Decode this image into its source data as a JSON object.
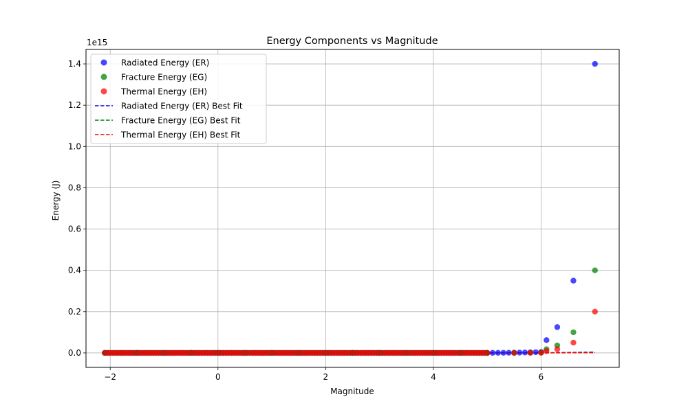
{
  "chart_data": {
    "type": "scatter",
    "title": "Energy Components vs Magnitude",
    "xlabel": "Magnitude",
    "ylabel": "Energy (J)",
    "y_offset_label": "1e15",
    "xlim": [
      -2.45,
      7.45
    ],
    "ylim": [
      -0.07,
      1.47
    ],
    "y_scale_factor": 1000000000000000.0,
    "xticks": [
      -2,
      0,
      2,
      4,
      6
    ],
    "xtick_labels": [
      "−2",
      "0",
      "2",
      "4",
      "6"
    ],
    "yticks": [
      0.0,
      0.2,
      0.4,
      0.6,
      0.8,
      1.0,
      1.2,
      1.4
    ],
    "ytick_labels": [
      "0.0",
      "0.2",
      "0.4",
      "0.6",
      "0.8",
      "1.0",
      "1.2",
      "1.4"
    ],
    "grid": true,
    "legend_position": "top-left",
    "colors": {
      "ER": "#0000ff",
      "EG": "#008000",
      "EH": "#ff0000"
    },
    "series": [
      {
        "name": "Radiated Energy (ER)",
        "key": "ER",
        "kind": "scatter",
        "x": [
          -2.1,
          -1.5,
          -1.0,
          -0.5,
          0.0,
          0.5,
          1.0,
          1.5,
          2.0,
          2.5,
          3.0,
          3.5,
          4.0,
          4.5,
          5.0,
          5.1,
          5.2,
          5.3,
          5.4,
          5.5,
          5.6,
          5.7,
          5.8,
          5.9,
          6.0,
          6.1,
          6.3,
          6.6,
          7.0
        ],
        "y": [
          0,
          0,
          0,
          0,
          0,
          0,
          0,
          0,
          0,
          0,
          0,
          0,
          0,
          0,
          0.0002,
          0.0003,
          0.0004,
          0.0006,
          0.0008,
          0.0011,
          0.0015,
          0.002,
          0.0028,
          0.0035,
          0.0045,
          0.062,
          0.125,
          0.35,
          1.4
        ]
      },
      {
        "name": "Fracture Energy (EG)",
        "key": "EG",
        "kind": "scatter",
        "x": [
          -2.1,
          -1.5,
          -1.0,
          -0.5,
          0.0,
          0.5,
          1.0,
          1.5,
          2.0,
          2.5,
          3.0,
          3.5,
          4.0,
          4.5,
          5.0,
          5.5,
          5.8,
          6.0,
          6.1,
          6.3,
          6.6,
          7.0
        ],
        "y": [
          0,
          0,
          0,
          0,
          0,
          0,
          0,
          0,
          0,
          0,
          0,
          0,
          0,
          0,
          0,
          0.0003,
          0.0008,
          0.0013,
          0.018,
          0.036,
          0.1,
          0.4
        ]
      },
      {
        "name": "Thermal Energy (EH)",
        "key": "EH",
        "kind": "scatter",
        "x": [
          -2.1,
          -1.5,
          -1.0,
          -0.5,
          0.0,
          0.5,
          1.0,
          1.5,
          2.0,
          2.5,
          3.0,
          3.5,
          4.0,
          4.5,
          5.0,
          5.5,
          5.8,
          6.0,
          6.1,
          6.3,
          6.6,
          7.0
        ],
        "y": [
          0,
          0,
          0,
          0,
          0,
          0,
          0,
          0,
          0,
          0,
          0,
          0,
          0,
          0,
          0,
          0.0002,
          0.0004,
          0.0007,
          0.009,
          0.018,
          0.05,
          0.2
        ]
      },
      {
        "name": "Radiated Energy (ER) Best Fit",
        "key": "ER",
        "kind": "line",
        "x": [
          -2.1,
          0,
          2,
          4,
          5,
          5.5,
          6,
          6.5,
          7.0
        ],
        "y": [
          0,
          0,
          0,
          0,
          0,
          0.0002,
          0.0007,
          0.002,
          0.004
        ]
      },
      {
        "name": "Fracture Energy (EG) Best Fit",
        "key": "EG",
        "kind": "line",
        "x": [
          -2.1,
          0,
          2,
          4,
          5,
          5.5,
          6,
          6.5,
          7.0
        ],
        "y": [
          0,
          0,
          0,
          0,
          0,
          0.0001,
          0.0004,
          0.001,
          0.002
        ]
      },
      {
        "name": "Thermal Energy (EH) Best Fit",
        "key": "EH",
        "kind": "line",
        "x": [
          -2.1,
          0,
          2,
          4,
          5,
          5.5,
          6,
          6.5,
          7.0
        ],
        "y": [
          0,
          0,
          0,
          0,
          0,
          0.0001,
          0.0002,
          0.0005,
          0.001
        ]
      }
    ]
  }
}
